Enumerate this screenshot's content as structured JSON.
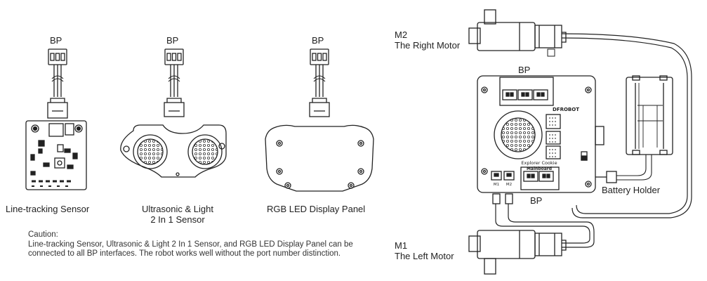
{
  "sensors": {
    "bp_label": "BP",
    "line_tracking": "Line-tracking Sensor",
    "ultrasonic_line1": "Ultrasonic & Light",
    "ultrasonic_line2": "2 In 1 Sensor",
    "rgb_panel": "RGB LED Display Panel"
  },
  "caution": {
    "title": "Caution:",
    "body": "Line-tracking Sensor, Ultrasonic & Light 2 In 1 Sensor, and  RGB LED Display Panel can be connected to all BP interfaces. The robot works well without  the port number distinction."
  },
  "robot": {
    "m2_label": "M2",
    "m2_desc": "The Right Motor",
    "m1_label": "M1",
    "m1_desc": "The Left Motor",
    "bp_top": "BP",
    "bp_bottom": "BP",
    "battery_holder": "Battery Holder"
  },
  "board": {
    "brand": "DFROBOT",
    "name_line1": "Explorer Cookie",
    "name_line2": "Mainboard",
    "m1_port": "M1",
    "m2_port": "M2"
  }
}
